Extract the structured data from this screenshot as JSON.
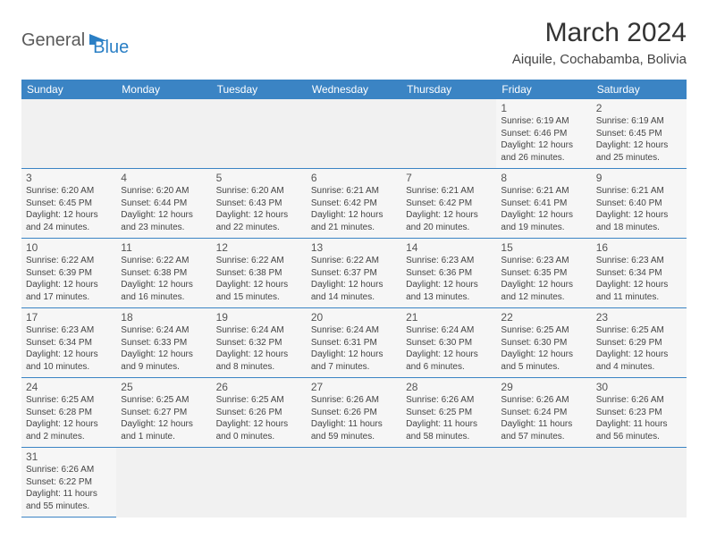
{
  "brand": {
    "part1": "General",
    "part2": "Blue"
  },
  "title": "March 2024",
  "location": "Aiquile, Cochabamba, Bolivia",
  "colors": {
    "header_bg": "#3b84c4",
    "header_text": "#ffffff",
    "cell_bg": "#f6f6f6",
    "border": "#3b84c4",
    "brand_accent": "#2a7fc5",
    "brand_gray": "#5a5a5a"
  },
  "weekdays": [
    "Sunday",
    "Monday",
    "Tuesday",
    "Wednesday",
    "Thursday",
    "Friday",
    "Saturday"
  ],
  "weeks": [
    [
      null,
      null,
      null,
      null,
      null,
      {
        "d": "1",
        "sr": "Sunrise: 6:19 AM",
        "ss": "Sunset: 6:46 PM",
        "dl1": "Daylight: 12 hours",
        "dl2": "and 26 minutes."
      },
      {
        "d": "2",
        "sr": "Sunrise: 6:19 AM",
        "ss": "Sunset: 6:45 PM",
        "dl1": "Daylight: 12 hours",
        "dl2": "and 25 minutes."
      }
    ],
    [
      {
        "d": "3",
        "sr": "Sunrise: 6:20 AM",
        "ss": "Sunset: 6:45 PM",
        "dl1": "Daylight: 12 hours",
        "dl2": "and 24 minutes."
      },
      {
        "d": "4",
        "sr": "Sunrise: 6:20 AM",
        "ss": "Sunset: 6:44 PM",
        "dl1": "Daylight: 12 hours",
        "dl2": "and 23 minutes."
      },
      {
        "d": "5",
        "sr": "Sunrise: 6:20 AM",
        "ss": "Sunset: 6:43 PM",
        "dl1": "Daylight: 12 hours",
        "dl2": "and 22 minutes."
      },
      {
        "d": "6",
        "sr": "Sunrise: 6:21 AM",
        "ss": "Sunset: 6:42 PM",
        "dl1": "Daylight: 12 hours",
        "dl2": "and 21 minutes."
      },
      {
        "d": "7",
        "sr": "Sunrise: 6:21 AM",
        "ss": "Sunset: 6:42 PM",
        "dl1": "Daylight: 12 hours",
        "dl2": "and 20 minutes."
      },
      {
        "d": "8",
        "sr": "Sunrise: 6:21 AM",
        "ss": "Sunset: 6:41 PM",
        "dl1": "Daylight: 12 hours",
        "dl2": "and 19 minutes."
      },
      {
        "d": "9",
        "sr": "Sunrise: 6:21 AM",
        "ss": "Sunset: 6:40 PM",
        "dl1": "Daylight: 12 hours",
        "dl2": "and 18 minutes."
      }
    ],
    [
      {
        "d": "10",
        "sr": "Sunrise: 6:22 AM",
        "ss": "Sunset: 6:39 PM",
        "dl1": "Daylight: 12 hours",
        "dl2": "and 17 minutes."
      },
      {
        "d": "11",
        "sr": "Sunrise: 6:22 AM",
        "ss": "Sunset: 6:38 PM",
        "dl1": "Daylight: 12 hours",
        "dl2": "and 16 minutes."
      },
      {
        "d": "12",
        "sr": "Sunrise: 6:22 AM",
        "ss": "Sunset: 6:38 PM",
        "dl1": "Daylight: 12 hours",
        "dl2": "and 15 minutes."
      },
      {
        "d": "13",
        "sr": "Sunrise: 6:22 AM",
        "ss": "Sunset: 6:37 PM",
        "dl1": "Daylight: 12 hours",
        "dl2": "and 14 minutes."
      },
      {
        "d": "14",
        "sr": "Sunrise: 6:23 AM",
        "ss": "Sunset: 6:36 PM",
        "dl1": "Daylight: 12 hours",
        "dl2": "and 13 minutes."
      },
      {
        "d": "15",
        "sr": "Sunrise: 6:23 AM",
        "ss": "Sunset: 6:35 PM",
        "dl1": "Daylight: 12 hours",
        "dl2": "and 12 minutes."
      },
      {
        "d": "16",
        "sr": "Sunrise: 6:23 AM",
        "ss": "Sunset: 6:34 PM",
        "dl1": "Daylight: 12 hours",
        "dl2": "and 11 minutes."
      }
    ],
    [
      {
        "d": "17",
        "sr": "Sunrise: 6:23 AM",
        "ss": "Sunset: 6:34 PM",
        "dl1": "Daylight: 12 hours",
        "dl2": "and 10 minutes."
      },
      {
        "d": "18",
        "sr": "Sunrise: 6:24 AM",
        "ss": "Sunset: 6:33 PM",
        "dl1": "Daylight: 12 hours",
        "dl2": "and 9 minutes."
      },
      {
        "d": "19",
        "sr": "Sunrise: 6:24 AM",
        "ss": "Sunset: 6:32 PM",
        "dl1": "Daylight: 12 hours",
        "dl2": "and 8 minutes."
      },
      {
        "d": "20",
        "sr": "Sunrise: 6:24 AM",
        "ss": "Sunset: 6:31 PM",
        "dl1": "Daylight: 12 hours",
        "dl2": "and 7 minutes."
      },
      {
        "d": "21",
        "sr": "Sunrise: 6:24 AM",
        "ss": "Sunset: 6:30 PM",
        "dl1": "Daylight: 12 hours",
        "dl2": "and 6 minutes."
      },
      {
        "d": "22",
        "sr": "Sunrise: 6:25 AM",
        "ss": "Sunset: 6:30 PM",
        "dl1": "Daylight: 12 hours",
        "dl2": "and 5 minutes."
      },
      {
        "d": "23",
        "sr": "Sunrise: 6:25 AM",
        "ss": "Sunset: 6:29 PM",
        "dl1": "Daylight: 12 hours",
        "dl2": "and 4 minutes."
      }
    ],
    [
      {
        "d": "24",
        "sr": "Sunrise: 6:25 AM",
        "ss": "Sunset: 6:28 PM",
        "dl1": "Daylight: 12 hours",
        "dl2": "and 2 minutes."
      },
      {
        "d": "25",
        "sr": "Sunrise: 6:25 AM",
        "ss": "Sunset: 6:27 PM",
        "dl1": "Daylight: 12 hours",
        "dl2": "and 1 minute."
      },
      {
        "d": "26",
        "sr": "Sunrise: 6:25 AM",
        "ss": "Sunset: 6:26 PM",
        "dl1": "Daylight: 12 hours",
        "dl2": "and 0 minutes."
      },
      {
        "d": "27",
        "sr": "Sunrise: 6:26 AM",
        "ss": "Sunset: 6:26 PM",
        "dl1": "Daylight: 11 hours",
        "dl2": "and 59 minutes."
      },
      {
        "d": "28",
        "sr": "Sunrise: 6:26 AM",
        "ss": "Sunset: 6:25 PM",
        "dl1": "Daylight: 11 hours",
        "dl2": "and 58 minutes."
      },
      {
        "d": "29",
        "sr": "Sunrise: 6:26 AM",
        "ss": "Sunset: 6:24 PM",
        "dl1": "Daylight: 11 hours",
        "dl2": "and 57 minutes."
      },
      {
        "d": "30",
        "sr": "Sunrise: 6:26 AM",
        "ss": "Sunset: 6:23 PM",
        "dl1": "Daylight: 11 hours",
        "dl2": "and 56 minutes."
      }
    ],
    [
      {
        "d": "31",
        "sr": "Sunrise: 6:26 AM",
        "ss": "Sunset: 6:22 PM",
        "dl1": "Daylight: 11 hours",
        "dl2": "and 55 minutes."
      },
      null,
      null,
      null,
      null,
      null,
      null
    ]
  ]
}
